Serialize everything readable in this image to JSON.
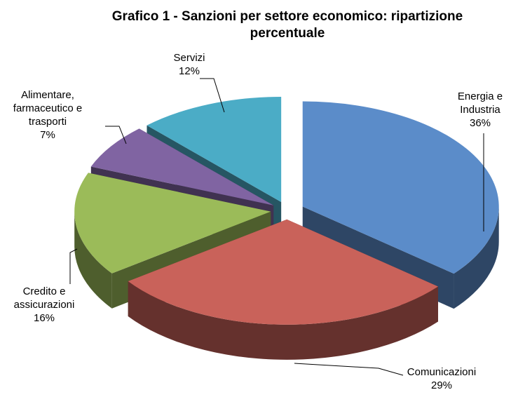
{
  "chart_data": {
    "type": "pie",
    "title": "Grafico 1 - Sanzioni per settore economico: ripartizione percentuale",
    "categories": [
      "Energia e Industria",
      "Comunicazioni",
      "Credito e assicurazioni",
      "Alimentare, farmaceutico e trasporti",
      "Servizi"
    ],
    "values": [
      36,
      29,
      16,
      7,
      12
    ],
    "value_labels": [
      "36%",
      "29%",
      "16%",
      "7%",
      "12%"
    ],
    "colors": [
      "#5b8cc9",
      "#c9625a",
      "#9bbb59",
      "#8064a2",
      "#4bacc6"
    ]
  }
}
